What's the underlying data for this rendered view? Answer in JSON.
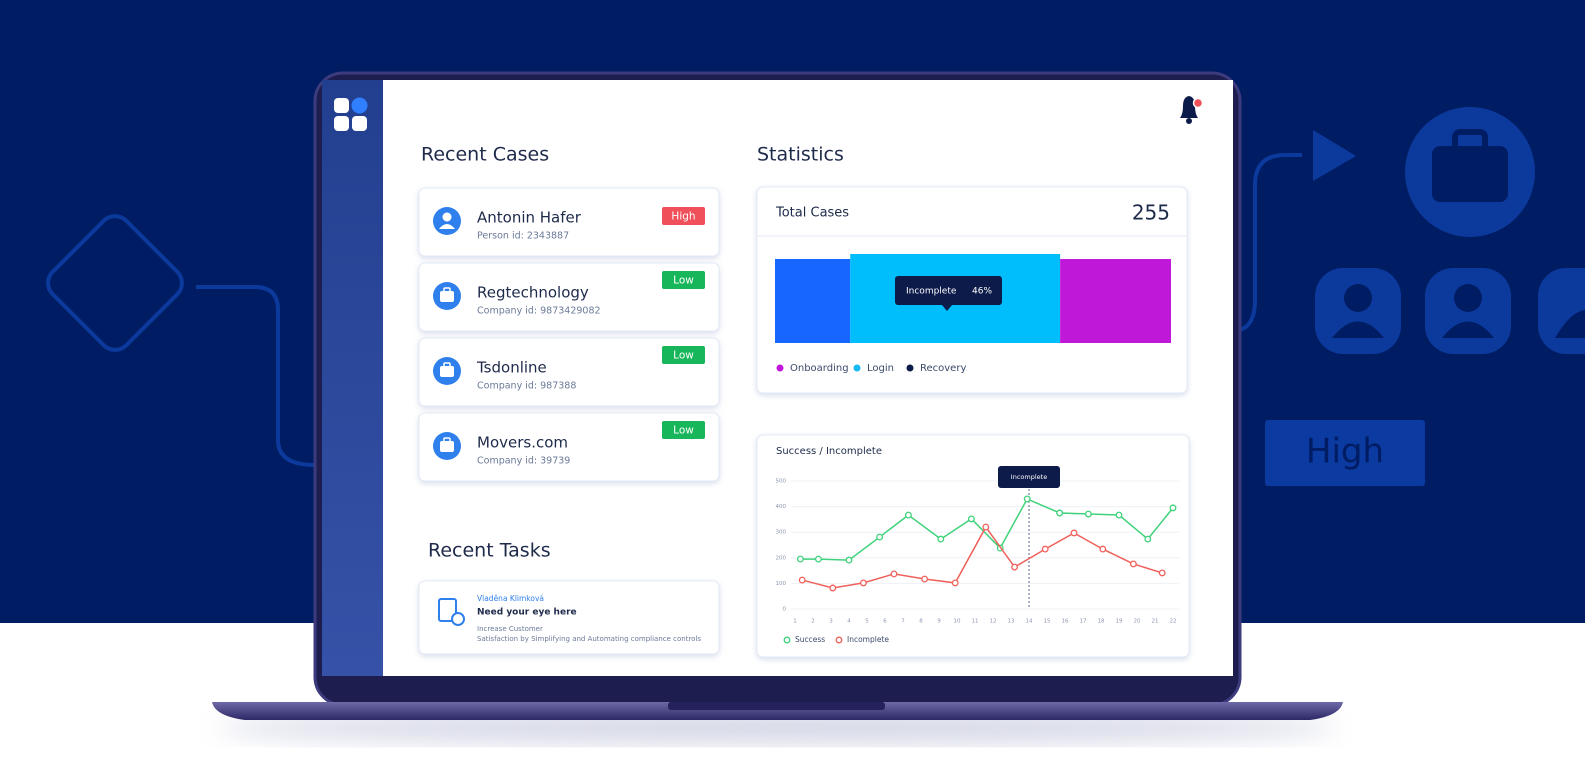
{
  "decor": {
    "badge": "High"
  },
  "recent_cases": {
    "title": "Recent Cases",
    "items": [
      {
        "name": "Antonin Hafer",
        "id": "Person id: 2343887",
        "priority": "High",
        "badge_color": "#f0505a"
      },
      {
        "name": "Regtechnology",
        "id": "Company id: 9873429082",
        "priority": "Low",
        "badge_color": "#17b65a"
      },
      {
        "name": "Tsdonline",
        "id": "Company id: 987388",
        "priority": "Low",
        "badge_color": "#17b65a"
      },
      {
        "name": "Movers.com",
        "id": "Company id: 39739",
        "priority": "Low",
        "badge_color": "#17b65a"
      }
    ]
  },
  "recent_tasks": {
    "title": "Recent Tasks",
    "items": [
      {
        "author": "Vladěna Klimková",
        "title": "Need your eye here",
        "description": [
          "Increase Customer",
          "Satisfaction by Simplifying and Automating compliance controls"
        ]
      }
    ]
  },
  "statistics": {
    "title": "Statistics",
    "total": {
      "label": "Total Cases",
      "value": 255
    },
    "breakdown": {
      "type": "bar",
      "stacked": true,
      "values": [
        19,
        53,
        28
      ],
      "colors": [
        "#1766ff",
        "#00bdfb",
        "#c018d8"
      ],
      "tooltip": {
        "name": "Incomplete",
        "value": 46,
        "value_label": "46%"
      },
      "legend": [
        {
          "name": "Onboarding",
          "color": "#c018d8"
        },
        {
          "name": "Login",
          "color": "#16b9f2"
        },
        {
          "name": "Recovery",
          "color": "#0d1b4a"
        }
      ]
    },
    "trend": {
      "type": "line",
      "title": "Success / Incomplete",
      "xlim": [
        1,
        22
      ],
      "xticks": [
        1,
        2,
        3,
        4,
        5,
        6,
        7,
        8,
        9,
        10,
        11,
        12,
        13,
        14,
        15,
        16,
        17,
        18,
        19,
        20,
        21,
        22
      ],
      "ylim": [
        0,
        500
      ],
      "yticks": [
        0,
        100,
        200,
        300,
        400,
        500
      ],
      "grid": true,
      "series": [
        {
          "name": "Success",
          "color": "#3fd27a",
          "x": [
            1.3,
            2.3,
            4.0,
            5.7,
            7.3,
            9.1,
            10.8,
            12.4,
            13.9,
            15.7,
            17.3,
            19.0,
            20.6,
            22.0
          ],
          "values": [
            195,
            195,
            191,
            281,
            367,
            273,
            352,
            238,
            430,
            375,
            371,
            367,
            273,
            395
          ]
        },
        {
          "name": "Incomplete",
          "color": "#f0605b",
          "x": [
            1.4,
            3.1,
            4.8,
            6.5,
            8.2,
            9.9,
            11.6,
            13.2,
            14.9,
            16.5,
            18.1,
            19.8,
            21.4
          ],
          "values": [
            113,
            82,
            102,
            137,
            117,
            102,
            320,
            164,
            234,
            297,
            234,
            176,
            141
          ]
        }
      ],
      "tooltip": {
        "label": "Incomplete",
        "x": 14
      }
    }
  }
}
